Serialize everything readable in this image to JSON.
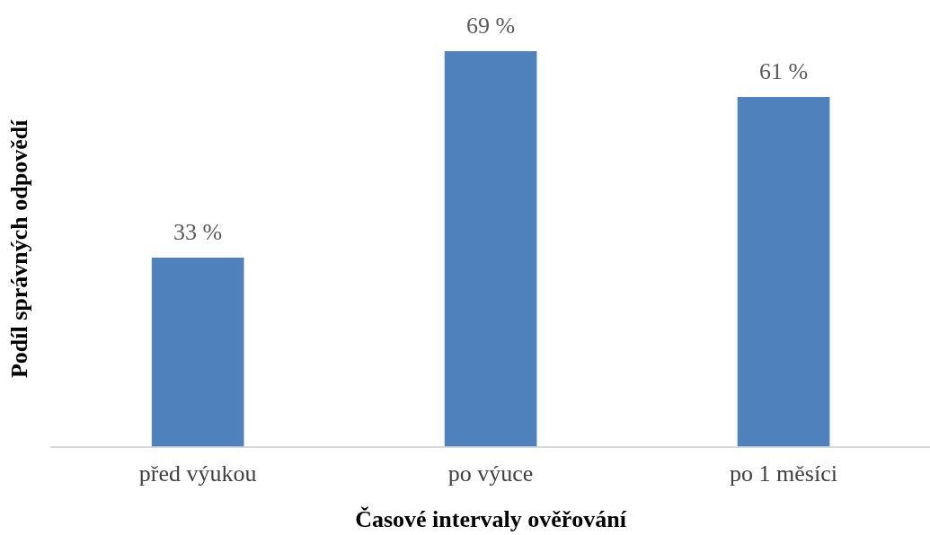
{
  "chart_data": {
    "type": "bar",
    "xlabel": "Časové intervaly ověřování",
    "ylabel": "Podíl správných odpovědí",
    "categories": [
      "před výukou",
      "po výuce",
      "po 1 měsíci"
    ],
    "values": [
      33,
      69,
      61
    ],
    "color": "#4f81bd",
    "value_labels": [
      "33 %",
      "69 %",
      "61 %"
    ],
    "legend": false,
    "grid": false
  }
}
